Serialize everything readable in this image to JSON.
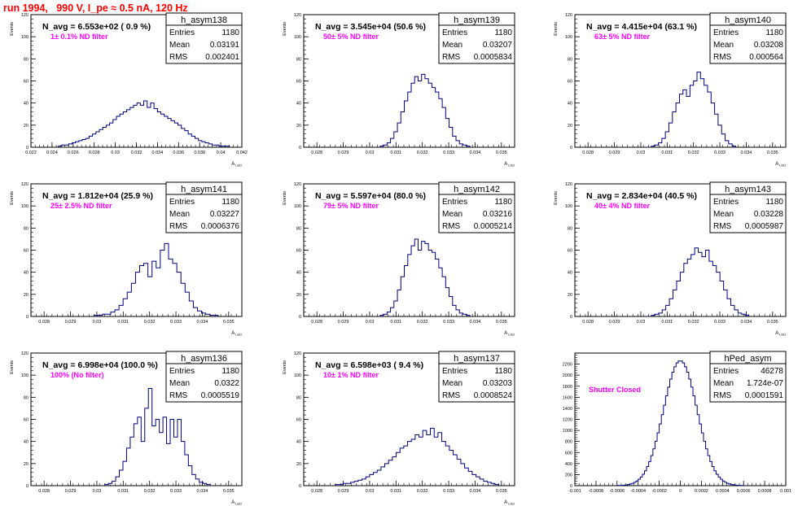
{
  "run_title": "run 1994,   990 V, I_pe ≈ 0.5 nA, 120 Hz",
  "colors": {
    "hist": "#000080",
    "annotation": "#ff00ff",
    "title": "#ff0000",
    "frame": "#000000"
  },
  "chart_data": [
    {
      "type": "histogram",
      "name": "h_asym138",
      "header": "N_avg = 6.553e+02 ( 0.9 %)",
      "annotation": "1± 0.1% ND filter",
      "stats": [
        [
          "Entries",
          "1180"
        ],
        [
          "Mean",
          "0.03191"
        ],
        [
          "RMS",
          "0.002401"
        ]
      ],
      "ylabel": "Events",
      "xlabel": "A_LED",
      "xlim": [
        0.022,
        0.042
      ],
      "ylim": [
        0,
        120
      ],
      "xticks": [
        "0.022",
        "0.024",
        "0.026",
        "0.028",
        "0.03",
        "0.032",
        "0.034",
        "0.036",
        "0.038",
        "0.04",
        "0.042"
      ],
      "xtick_values": [
        0.022,
        0.024,
        0.026,
        0.028,
        0.03,
        0.032,
        0.034,
        0.036,
        0.038,
        0.04,
        0.042
      ],
      "yticks": [
        0,
        20,
        40,
        60,
        80,
        100,
        120
      ],
      "bin_range": [
        0.0246,
        0.0408
      ],
      "counts": [
        1,
        2,
        2,
        3,
        4,
        5,
        6,
        7,
        8,
        10,
        12,
        14,
        16,
        18,
        20,
        22,
        25,
        28,
        30,
        32,
        34,
        36,
        38,
        40,
        38,
        42,
        36,
        40,
        35,
        32,
        30,
        28,
        26,
        24,
        22,
        20,
        17,
        15,
        12,
        10,
        8,
        6,
        5,
        4,
        3,
        2,
        2,
        1,
        1,
        1
      ]
    },
    {
      "type": "histogram",
      "name": "h_asym139",
      "header": "N_avg = 3.545e+04 (50.6 %)",
      "annotation": "50± 5% ND filter",
      "stats": [
        [
          "Entries",
          "1180"
        ],
        [
          "Mean",
          "0.03207"
        ],
        [
          "RMS",
          "0.0005834"
        ]
      ],
      "ylabel": "Events",
      "xlabel": "A_LED",
      "xlim": [
        0.0275,
        0.0355
      ],
      "ylim": [
        0,
        120
      ],
      "xticks": [
        "0.028",
        "0.029",
        "0.03",
        "0.031",
        "0.032",
        "0.033",
        "0.034",
        "0.035"
      ],
      "xtick_values": [
        0.028,
        0.029,
        0.03,
        0.031,
        0.032,
        0.033,
        0.034,
        0.035
      ],
      "yticks": [
        0,
        20,
        40,
        60,
        80,
        100,
        120
      ],
      "bin_range": [
        0.0304,
        0.0338
      ],
      "counts": [
        1,
        2,
        4,
        8,
        14,
        22,
        32,
        42,
        50,
        58,
        64,
        60,
        66,
        62,
        58,
        54,
        50,
        44,
        36,
        26,
        18,
        10,
        6,
        3,
        2,
        1
      ]
    },
    {
      "type": "histogram",
      "name": "h_asym140",
      "header": "N_avg = 4.415e+04 (63.1 %)",
      "annotation": "63± 5% ND filter",
      "stats": [
        [
          "Entries",
          "1180"
        ],
        [
          "Mean",
          "0.03208"
        ],
        [
          "RMS",
          "0.000564"
        ]
      ],
      "ylabel": "Events",
      "xlabel": "A_LED",
      "xlim": [
        0.0275,
        0.0355
      ],
      "ylim": [
        0,
        120
      ],
      "xticks": [
        "0.028",
        "0.029",
        "0.03",
        "0.031",
        "0.032",
        "0.033",
        "0.034",
        "0.035"
      ],
      "xtick_values": [
        0.028,
        0.029,
        0.03,
        0.031,
        0.032,
        0.033,
        0.034,
        0.035
      ],
      "yticks": [
        0,
        20,
        40,
        60,
        80,
        100,
        120
      ],
      "bin_range": [
        0.0304,
        0.0336
      ],
      "counts": [
        1,
        2,
        4,
        8,
        14,
        22,
        32,
        40,
        48,
        52,
        46,
        56,
        60,
        68,
        62,
        56,
        50,
        40,
        30,
        20,
        12,
        6,
        3,
        1
      ]
    },
    {
      "type": "histogram",
      "name": "h_asym141",
      "header": "N_avg = 1.812e+04 (25.9 %)",
      "annotation": "25± 2.5% ND filter",
      "stats": [
        [
          "Entries",
          "1180"
        ],
        [
          "Mean",
          "0.03227"
        ],
        [
          "RMS",
          "0.0006376"
        ]
      ],
      "ylabel": "Events",
      "xlabel": "A_LED",
      "xlim": [
        0.0275,
        0.0355
      ],
      "ylim": [
        0,
        120
      ],
      "xticks": [
        "0.028",
        "0.029",
        "0.03",
        "0.031",
        "0.032",
        "0.033",
        "0.034",
        "0.035"
      ],
      "xtick_values": [
        0.028,
        0.029,
        0.03,
        0.031,
        0.032,
        0.033,
        0.034,
        0.035
      ],
      "yticks": [
        0,
        20,
        40,
        60,
        80,
        100,
        120
      ],
      "bin_range": [
        0.0299,
        0.0346
      ],
      "counts": [
        1,
        1,
        2,
        2,
        4,
        6,
        10,
        16,
        22,
        30,
        40,
        46,
        48,
        36,
        50,
        44,
        60,
        66,
        52,
        48,
        40,
        30,
        22,
        14,
        8,
        5,
        3,
        2,
        1,
        1
      ]
    },
    {
      "type": "histogram",
      "name": "h_asym142",
      "header": "N_avg = 5.597e+04 (80.0 %)",
      "annotation": "79± 5% ND filter",
      "stats": [
        [
          "Entries",
          "1180"
        ],
        [
          "Mean",
          "0.03216"
        ],
        [
          "RMS",
          "0.0005214"
        ]
      ],
      "ylabel": "Events",
      "xlabel": "A_LED",
      "xlim": [
        0.0275,
        0.0355
      ],
      "ylim": [
        0,
        120
      ],
      "xticks": [
        "0.028",
        "0.029",
        "0.03",
        "0.031",
        "0.032",
        "0.033",
        "0.034",
        "0.035"
      ],
      "xtick_values": [
        0.028,
        0.029,
        0.03,
        0.031,
        0.032,
        0.033,
        0.034,
        0.035
      ],
      "yticks": [
        0,
        20,
        40,
        60,
        80,
        100,
        120
      ],
      "bin_range": [
        0.0304,
        0.0338
      ],
      "counts": [
        1,
        2,
        4,
        8,
        14,
        24,
        36,
        46,
        56,
        64,
        70,
        60,
        68,
        66,
        60,
        58,
        52,
        44,
        36,
        26,
        18,
        10,
        6,
        3,
        2,
        1
      ]
    },
    {
      "type": "histogram",
      "name": "h_asym143",
      "header": "N_avg = 2.834e+04 (40.5 %)",
      "annotation": "40± 4% ND filter",
      "stats": [
        [
          "Entries",
          "1180"
        ],
        [
          "Mean",
          "0.03228"
        ],
        [
          "RMS",
          "0.0005987"
        ]
      ],
      "ylabel": "Events",
      "xlabel": "A_LED",
      "xlim": [
        0.0275,
        0.0355
      ],
      "ylim": [
        0,
        120
      ],
      "xticks": [
        "0.028",
        "0.029",
        "0.03",
        "0.031",
        "0.032",
        "0.033",
        "0.034",
        "0.035"
      ],
      "xtick_values": [
        0.028,
        0.029,
        0.03,
        0.031,
        0.032,
        0.033,
        0.034,
        0.035
      ],
      "yticks": [
        0,
        20,
        40,
        60,
        80,
        100,
        120
      ],
      "bin_range": [
        0.0304,
        0.0341
      ],
      "counts": [
        1,
        2,
        3,
        6,
        10,
        16,
        24,
        32,
        40,
        48,
        52,
        56,
        62,
        58,
        54,
        60,
        50,
        46,
        40,
        32,
        24,
        16,
        10,
        6,
        3,
        2,
        1
      ]
    },
    {
      "type": "histogram",
      "name": "h_asym136",
      "header": "N_avg = 6.998e+04 (100.0 %)",
      "annotation": "100% (No filter)",
      "stats": [
        [
          "Entries",
          "1180"
        ],
        [
          "Mean",
          "0.0322"
        ],
        [
          "RMS",
          "0.0005519"
        ]
      ],
      "ylabel": "Events",
      "xlabel": "A_LED",
      "xlim": [
        0.0275,
        0.0355
      ],
      "ylim": [
        0,
        120
      ],
      "xticks": [
        "0.028",
        "0.029",
        "0.03",
        "0.031",
        "0.032",
        "0.033",
        "0.034",
        "0.035"
      ],
      "xtick_values": [
        0.028,
        0.029,
        0.03,
        0.031,
        0.032,
        0.033,
        0.034,
        0.035
      ],
      "yticks": [
        0,
        20,
        40,
        60,
        80,
        100,
        120
      ],
      "bin_range": [
        0.0303,
        0.0343
      ],
      "counts": [
        1,
        2,
        4,
        8,
        14,
        22,
        34,
        44,
        56,
        62,
        40,
        70,
        88,
        54,
        60,
        48,
        62,
        38,
        60,
        44,
        60,
        40,
        28,
        18,
        10,
        6,
        3,
        2,
        1
      ]
    },
    {
      "type": "histogram",
      "name": "h_asym137",
      "header": "N_avg = 6.598e+03 ( 9.4 %)",
      "annotation": "10± 1% ND filter",
      "stats": [
        [
          "Entries",
          "1180"
        ],
        [
          "Mean",
          "0.03203"
        ],
        [
          "RMS",
          "0.0008524"
        ]
      ],
      "ylabel": "Events",
      "xlabel": "A_LED",
      "xlim": [
        0.0275,
        0.0355
      ],
      "ylim": [
        0,
        120
      ],
      "xticks": [
        "0.028",
        "0.029",
        "0.03",
        "0.031",
        "0.032",
        "0.033",
        "0.034",
        "0.035"
      ],
      "xtick_values": [
        0.028,
        0.029,
        0.03,
        0.031,
        0.032,
        0.033,
        0.034,
        0.035
      ],
      "yticks": [
        0,
        20,
        40,
        60,
        80,
        100,
        120
      ],
      "bin_range": [
        0.0287,
        0.0349
      ],
      "counts": [
        1,
        1,
        2,
        2,
        3,
        4,
        5,
        6,
        8,
        10,
        12,
        14,
        17,
        20,
        23,
        26,
        30,
        34,
        36,
        40,
        42,
        46,
        44,
        50,
        46,
        52,
        44,
        48,
        40,
        36,
        32,
        28,
        24,
        20,
        16,
        13,
        10,
        8,
        6,
        4,
        3,
        2,
        1
      ]
    },
    {
      "type": "histogram",
      "name": "hPed_asym",
      "header": "",
      "annotation": "Shutter Closed",
      "stats": [
        [
          "Entries",
          "46278"
        ],
        [
          "Mean",
          "1.724e-07"
        ],
        [
          "RMS",
          "0.0001591"
        ]
      ],
      "ylabel": "",
      "xlabel": "",
      "xlim": [
        -0.001,
        0.001
      ],
      "ylim": [
        0,
        2400
      ],
      "xticks": [
        "-0.001",
        "-0.0008",
        "-0.0006",
        "-0.0004",
        "-0.0002",
        "0",
        "0.0002",
        "0.0004",
        "0.0006",
        "0.0008",
        "0.001"
      ],
      "xtick_values": [
        -0.001,
        -0.0008,
        -0.0006,
        -0.0004,
        -0.0002,
        0,
        0.0002,
        0.0004,
        0.0006,
        0.0008,
        0.001
      ],
      "yticks": [
        0,
        200,
        400,
        600,
        800,
        1000,
        1200,
        1400,
        1600,
        1800,
        2000,
        2200
      ],
      "bin_range": [
        -0.0006,
        0.0006
      ],
      "gaussian": {
        "mean": 0.0,
        "sigma": 0.00016,
        "peak": 2260,
        "bins": 60
      }
    }
  ]
}
